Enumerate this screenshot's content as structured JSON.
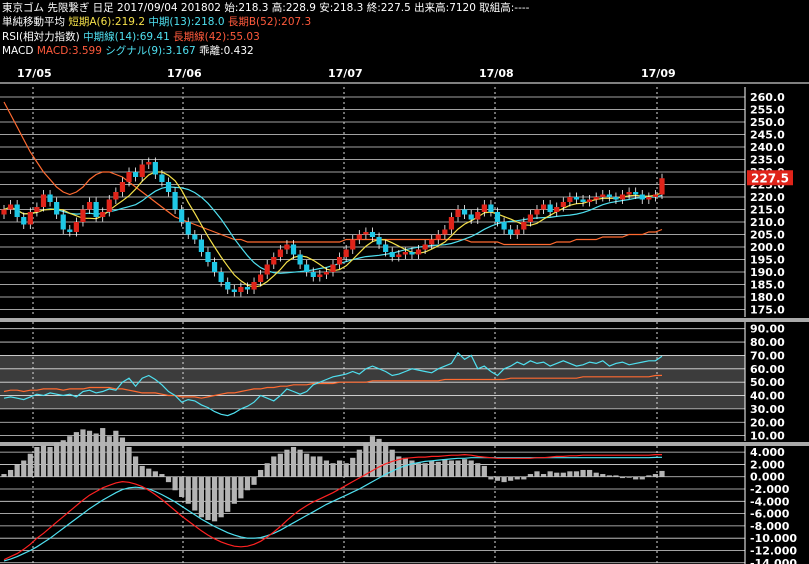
{
  "header": {
    "line1": {
      "name": "東京ゴム 先限繋ぎ 日足",
      "date": "2017/09/04",
      "contract": "201802",
      "open": "始:218.3",
      "high": "高:228.9",
      "low": "安:218.3",
      "close": "終:227.5",
      "volume": "出来高:7120",
      "oi": "取組高:----"
    },
    "line2": {
      "label": "単純移動平均",
      "short": "短期A(6):219.2",
      "mid": "中期(13):218.0",
      "long": "長期B(52):207.3"
    },
    "line3": {
      "label": "RSI(相対力指数)",
      "mid": "中期線(14):69.41",
      "long": "長期線(42):55.03"
    },
    "line4": {
      "label": "MACD",
      "macd": "MACD:3.599",
      "signal": "シグナル(9):3.167",
      "hist": "乖離:0.432"
    }
  },
  "colors": {
    "up": "#e0241a",
    "down": "#1fc8e6",
    "grid": "#ffffff",
    "bg": "#000000",
    "rsiBand": "#3c3c3c",
    "sma6": "#f4e04a",
    "sma13": "#4fe0f0",
    "sma52": "#ff6a30",
    "rsi14": "#4fe0f0",
    "rsi42": "#ff6a30",
    "macd": "#ff2222",
    "signal": "#4fe0f0",
    "hist": "#b4b4b4",
    "lastPriceBg": "#e0241a"
  },
  "chart_data": [
    {
      "type": "candlestick",
      "x_labels": [
        "17/05",
        "17/06",
        "17/07",
        "17/08",
        "17/09"
      ],
      "ylim": [
        172,
        264
      ],
      "y_ticks": [
        "260.0",
        "255.0",
        "250.0",
        "245.0",
        "240.0",
        "235.0",
        "230.0",
        "225.0",
        "220.0",
        "215.0",
        "210.0",
        "205.0",
        "200.0",
        "195.0",
        "190.0",
        "185.0",
        "180.0",
        "175.0"
      ],
      "last_price": "227.5",
      "closes": [
        215,
        217,
        212,
        209,
        214,
        216,
        221,
        218,
        213,
        207,
        206,
        210,
        215,
        218,
        212,
        214,
        219,
        222,
        226,
        230,
        228,
        233,
        234,
        229,
        226,
        222,
        215,
        210,
        205,
        203,
        198,
        194,
        190,
        186,
        183,
        182,
        184,
        183,
        186,
        189,
        193,
        196,
        199,
        201,
        197,
        193,
        190,
        188,
        189,
        190,
        193,
        196,
        199,
        203,
        205,
        206,
        204,
        201,
        198,
        196,
        197,
        198,
        197,
        199,
        201,
        203,
        205,
        207,
        212,
        215,
        213,
        211,
        214,
        217,
        214,
        210,
        207,
        205,
        207,
        210,
        213,
        215,
        217,
        214,
        216,
        218,
        220,
        219,
        218,
        219,
        220,
        221,
        220,
        219,
        221,
        222,
        221,
        219,
        220,
        221,
        227.5
      ],
      "sma52": [
        258,
        253,
        248,
        243,
        238,
        234,
        230,
        227,
        224,
        222,
        221,
        222,
        224,
        227,
        229,
        230,
        230,
        229,
        228,
        226,
        224,
        222,
        220,
        218,
        216,
        214,
        212,
        211,
        210,
        209,
        208,
        207,
        206,
        205,
        204,
        203,
        203,
        202,
        202,
        202,
        202,
        202,
        202,
        202,
        202,
        202,
        202,
        202,
        202,
        202,
        202,
        202,
        203,
        203,
        203,
        203,
        203,
        203,
        203,
        203,
        203,
        203,
        203,
        203,
        203,
        203,
        203,
        203,
        203,
        203,
        203,
        202,
        202,
        202,
        202,
        202,
        201,
        201,
        201,
        201,
        201,
        201,
        201,
        201,
        202,
        202,
        202,
        203,
        203,
        203,
        203,
        204,
        204,
        204,
        204,
        205,
        205,
        205,
        206,
        206,
        207
      ]
    },
    {
      "type": "line",
      "series": [
        {
          "name": "中期線(14)"
        },
        {
          "name": "長期線(42)"
        }
      ],
      "ylim": [
        6,
        95
      ],
      "y_ticks": [
        "90.00",
        "80.00",
        "70.00",
        "60.00",
        "50.00",
        "40.00",
        "30.00",
        "20.00",
        "10.00"
      ],
      "rsi14": [
        38,
        39,
        38,
        37,
        39,
        41,
        40,
        42,
        41,
        40,
        41,
        39,
        43,
        44,
        42,
        43,
        45,
        44,
        50,
        53,
        47,
        53,
        55,
        52,
        48,
        43,
        40,
        35,
        37,
        36,
        33,
        31,
        28,
        26,
        25,
        27,
        30,
        32,
        35,
        40,
        38,
        36,
        40,
        45,
        43,
        41,
        43,
        48,
        50,
        52,
        54,
        55,
        56,
        58,
        56,
        60,
        62,
        60,
        58,
        55,
        56,
        58,
        60,
        59,
        58,
        57,
        60,
        62,
        64,
        72,
        67,
        70,
        60,
        62,
        58,
        55,
        60,
        62,
        65,
        63,
        66,
        64,
        65,
        62,
        64,
        66,
        64,
        62,
        63,
        65,
        64,
        66,
        62,
        64,
        65,
        63,
        64,
        65,
        66,
        66,
        69.41
      ],
      "rsi42": [
        43,
        44,
        44,
        43,
        44,
        44,
        45,
        45,
        45,
        44,
        45,
        45,
        45,
        46,
        46,
        46,
        46,
        45,
        45,
        44,
        43,
        42,
        42,
        42,
        41,
        40,
        40,
        39,
        39,
        39,
        38,
        39,
        40,
        41,
        42,
        42,
        43,
        44,
        45,
        45,
        46,
        46,
        47,
        47,
        48,
        48,
        48,
        49,
        49,
        49,
        49,
        50,
        50,
        50,
        50,
        50,
        51,
        51,
        51,
        51,
        51,
        51,
        51,
        51,
        51,
        51,
        51,
        52,
        52,
        52,
        52,
        52,
        52,
        52,
        52,
        52,
        52,
        53,
        53,
        53,
        53,
        53,
        53,
        53,
        53,
        53,
        53,
        53,
        54,
        54,
        54,
        54,
        54,
        54,
        54,
        54,
        54,
        54,
        54,
        55,
        55.03
      ]
    },
    {
      "type": "bar+line",
      "series": [
        {
          "name": "MACD"
        },
        {
          "name": "シグナル(9)"
        }
      ],
      "ylim": [
        -14.2,
        5
      ],
      "y_ticks": [
        "4.000",
        "2.000",
        "0.000",
        "-2.000",
        "-4.000",
        "-6.000",
        "-8.000",
        "-10.000",
        "-12.000",
        "-14.000"
      ],
      "hist": [
        0.2,
        0.5,
        0.9,
        1.2,
        1.7,
        2.2,
        2.3,
        2.2,
        2.5,
        2.7,
        3.0,
        3.3,
        3.5,
        3.4,
        3.2,
        3.6,
        3.0,
        3.4,
        2.9,
        2.2,
        1.5,
        0.8,
        0.6,
        0.4,
        0.2,
        -0.4,
        -1.0,
        -1.5,
        -2.0,
        -2.5,
        -3.0,
        -3.2,
        -3.3,
        -3.0,
        -2.6,
        -2.0,
        -1.6,
        -1.0,
        -0.6,
        0.5,
        1.0,
        1.5,
        1.7,
        2.0,
        2.2,
        2.0,
        1.7,
        1.5,
        1.5,
        1.2,
        1.0,
        1.2,
        1.0,
        1.4,
        2.0,
        2.5,
        3.0,
        2.8,
        2.5,
        2.0,
        1.5,
        1.4,
        1.2,
        1.0,
        1.0,
        1.2,
        1.1,
        1.3,
        1.2,
        1.2,
        1.3,
        1.2,
        1.0,
        0.8,
        -0.2,
        -0.3,
        -0.4,
        -0.3,
        -0.2,
        -0.2,
        0.2,
        0.4,
        0.2,
        0.4,
        0.3,
        0.3,
        0.4,
        0.4,
        0.5,
        0.5,
        0.3,
        0.2,
        0.1,
        0.1,
        -0.1,
        0.0,
        -0.2,
        -0.2,
        0.1,
        0.2,
        0.43
      ],
      "macd": [
        -13.5,
        -13,
        -12.5,
        -11.8,
        -11,
        -10,
        -9.2,
        -8.3,
        -7.4,
        -6.5,
        -5.6,
        -4.7,
        -3.8,
        -3.0,
        -2.4,
        -1.8,
        -1.4,
        -1.0,
        -0.8,
        -0.9,
        -1.2,
        -1.6,
        -2.2,
        -2.9,
        -3.7,
        -4.6,
        -5.5,
        -6.4,
        -7.2,
        -8.0,
        -8.8,
        -9.5,
        -10.1,
        -10.6,
        -11.0,
        -11.3,
        -11.4,
        -11.3,
        -11.0,
        -10.5,
        -9.8,
        -9.0,
        -8.1,
        -7.1,
        -6.2,
        -5.4,
        -4.7,
        -4.1,
        -3.6,
        -3.1,
        -2.6,
        -2.0,
        -1.4,
        -0.8,
        -0.2,
        0.4,
        1.0,
        1.6,
        2.1,
        2.5,
        2.8,
        3.0,
        3.1,
        3.2,
        3.2,
        3.3,
        3.3,
        3.4,
        3.5,
        3.5,
        3.6,
        3.5,
        3.3,
        3.2,
        3.1,
        3.0,
        3.0,
        3.0,
        3.0,
        3.0,
        3.0,
        3.1,
        3.1,
        3.2,
        3.3,
        3.3,
        3.4,
        3.4,
        3.5,
        3.5,
        3.5,
        3.5,
        3.5,
        3.5,
        3.5,
        3.5,
        3.5,
        3.5,
        3.5,
        3.6,
        3.599
      ],
      "signal": [
        -13.7,
        -13.4,
        -13,
        -12.5,
        -12,
        -11.4,
        -10.7,
        -10.0,
        -9.2,
        -8.4,
        -7.6,
        -6.8,
        -6.0,
        -5.2,
        -4.5,
        -3.8,
        -3.2,
        -2.6,
        -2.1,
        -1.8,
        -1.7,
        -1.8,
        -2.0,
        -2.4,
        -2.9,
        -3.5,
        -4.1,
        -4.8,
        -5.5,
        -6.2,
        -6.9,
        -7.5,
        -8.1,
        -8.6,
        -9.1,
        -9.5,
        -9.8,
        -10.0,
        -10.0,
        -9.9,
        -9.6,
        -9.2,
        -8.7,
        -8.1,
        -7.5,
        -6.9,
        -6.3,
        -5.7,
        -5.1,
        -4.5,
        -4.0,
        -3.5,
        -3.0,
        -2.5,
        -2.0,
        -1.4,
        -0.8,
        -0.2,
        0.4,
        0.9,
        1.4,
        1.8,
        2.1,
        2.3,
        2.5,
        2.6,
        2.7,
        2.8,
        2.9,
        3.0,
        3.0,
        3.1,
        3.1,
        3.1,
        3.1,
        3.1,
        3.1,
        3.1,
        3.1,
        3.1,
        3.1,
        3.1,
        3.1,
        3.1,
        3.1,
        3.1,
        3.1,
        3.1,
        3.1,
        3.1,
        3.1,
        3.1,
        3.1,
        3.1,
        3.1,
        3.1,
        3.1,
        3.1,
        3.1,
        3.15,
        3.167
      ]
    }
  ]
}
